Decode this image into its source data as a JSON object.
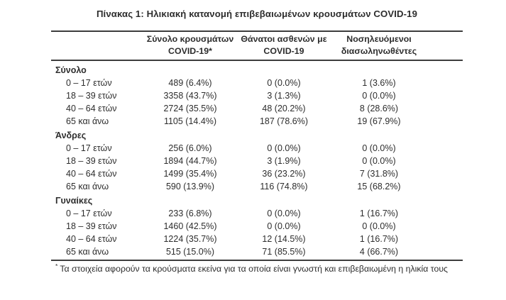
{
  "doc": {
    "title": "Πίνακας 1: Ηλικιακή κατανομή επιβεβαιωμένων κρουσμάτων COVID-19"
  },
  "table": {
    "columns": [
      {
        "line1": "Σύνολο κρουσμάτων",
        "line2": "COVID-19*"
      },
      {
        "line1": "Θάνατοι ασθενών με",
        "line2": "COVID-19"
      },
      {
        "line1": "Νοσηλευόμενοι",
        "line2": "διασωληνωθέντες"
      }
    ],
    "sections": [
      {
        "name": "Σύνολο",
        "rows": [
          {
            "label": "0 – 17 ετών",
            "cases": "489 (6.4%)",
            "deaths": "0 (0.0%)",
            "intubated": "1 (3.6%)"
          },
          {
            "label": "18 – 39 ετών",
            "cases": "3358 (43.7%)",
            "deaths": "3 (1.3%)",
            "intubated": "0 (0.0%)"
          },
          {
            "label": "40 – 64 ετών",
            "cases": "2724 (35.5%)",
            "deaths": "48 (20.2%)",
            "intubated": "8 (28.6%)"
          },
          {
            "label": "65 και άνω",
            "cases": "1105 (14.4%)",
            "deaths": "187 (78.6%)",
            "intubated": "19 (67.9%)"
          }
        ]
      },
      {
        "name": "Άνδρες",
        "rows": [
          {
            "label": "0 – 17 ετών",
            "cases": "256 (6.0%)",
            "deaths": "0 (0.0%)",
            "intubated": "0 (0.0%)"
          },
          {
            "label": "18 – 39 ετών",
            "cases": "1894 (44.7%)",
            "deaths": "3 (1.9%)",
            "intubated": "0 (0.0%)"
          },
          {
            "label": "40 – 64 ετών",
            "cases": "1499 (35.4%)",
            "deaths": "36 (23.2%)",
            "intubated": "7 (31.8%)"
          },
          {
            "label": "65 και άνω",
            "cases": "590 (13.9%)",
            "deaths": "116 (74.8%)",
            "intubated": "15 (68.2%)"
          }
        ]
      },
      {
        "name": "Γυναίκες",
        "rows": [
          {
            "label": "0 – 17 ετών",
            "cases": "233 (6.8%)",
            "deaths": "0 (0.0%)",
            "intubated": "1 (16.7%)"
          },
          {
            "label": "18 – 39 ετών",
            "cases": "1460 (42.5%)",
            "deaths": "0 (0.0%)",
            "intubated": "0 (0.0%)"
          },
          {
            "label": "40 – 64 ετών",
            "cases": "1224 (35.7%)",
            "deaths": "12 (14.5%)",
            "intubated": "1 (16.7%)"
          },
          {
            "label": "65 και άνω",
            "cases": "515 (15.0%)",
            "deaths": "71 (85.5%)",
            "intubated": "4 (66.7%)"
          }
        ]
      }
    ],
    "footnote_marker": "*",
    "footnote": "Τα στοιχεία αφορούν τα κρούσματα εκείνα για τα οποία είναι γνωστή και επιβεβαιωμένη η ηλικία τους"
  },
  "colors": {
    "text": "#2d2d2d",
    "rule": "#3d3d3d",
    "background": "#ffffff"
  }
}
